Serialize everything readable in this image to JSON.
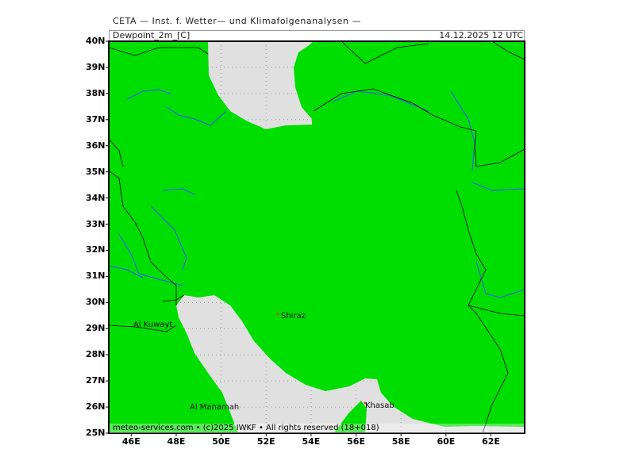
{
  "header": {
    "supertitle": "CETA — Inst. f. Wetter— und Klimafolgenanalysen —",
    "field": "Dewpoint_2m_[C]",
    "valid_time": "14.12.2025 12 UTC"
  },
  "map": {
    "extent": {
      "lon": [
        45,
        63.5
      ],
      "lat": [
        25,
        40
      ]
    },
    "land_color": "#00dd00",
    "water_color": "#e0e0e0",
    "river_color": "#3355ff",
    "border_color": "#000000",
    "lat_labels": [
      "25N",
      "26N",
      "27N",
      "28N",
      "29N",
      "30N",
      "31N",
      "32N",
      "33N",
      "34N",
      "35N",
      "36N",
      "37N",
      "38N",
      "39N",
      "40N"
    ],
    "lon_labels": [
      "46E",
      "48E",
      "50E",
      "52E",
      "54E",
      "56E",
      "58E",
      "60E",
      "62E"
    ],
    "cities": [
      {
        "name": "Al Kuwayt"
      },
      {
        "name": "Shiraz"
      },
      {
        "name": "Al Manamah"
      },
      {
        "name": "Khasab"
      }
    ]
  },
  "footer": {
    "copyright": "meteo-services.com • (c)2025 IWKF • All rights reserved (18+018)"
  }
}
